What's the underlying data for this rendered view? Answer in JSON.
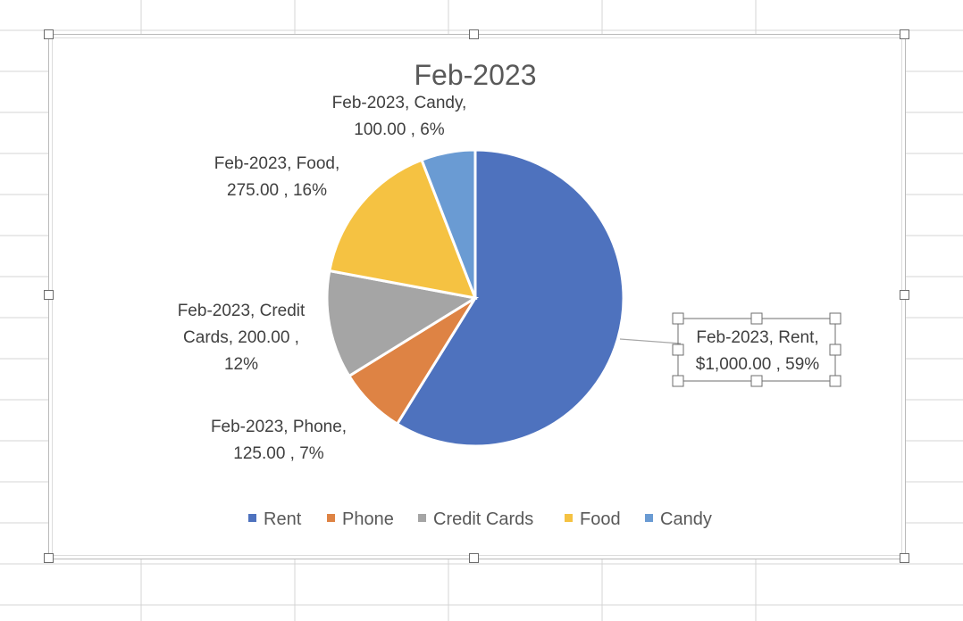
{
  "chart_data": {
    "type": "pie",
    "title": "Feb-2023",
    "series_name": "Feb-2023",
    "categories": [
      "Rent",
      "Phone",
      "Credit Cards",
      "Food",
      "Candy"
    ],
    "values": [
      1000,
      125,
      200,
      275,
      100
    ],
    "percentages": [
      59,
      7,
      12,
      16,
      6
    ],
    "colors": [
      "#4E72BE",
      "#DE8344",
      "#A5A5A5",
      "#F5C242",
      "#6A9BD3"
    ],
    "data_labels": [
      [
        "Feb-2023, Rent,",
        "$1,000.00 , 59%"
      ],
      [
        "Feb-2023, Phone,",
        "125.00 , 7%"
      ],
      [
        "Feb-2023, Credit",
        "Cards,  200.00 ,",
        "12%"
      ],
      [
        "Feb-2023, Food,",
        "275.00 , 16%"
      ],
      [
        "Feb-2023, Candy,",
        "100.00 , 6%"
      ]
    ],
    "legend_position": "bottom",
    "selected_label": "Rent"
  }
}
